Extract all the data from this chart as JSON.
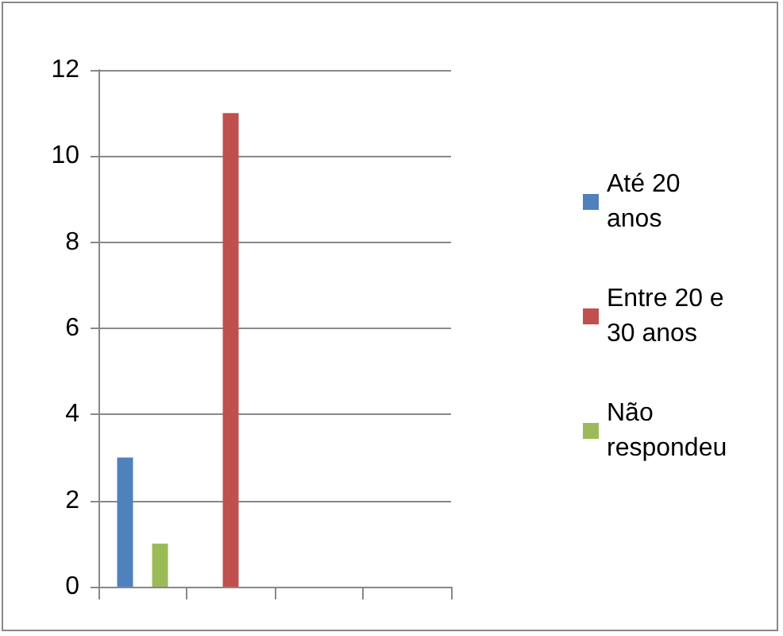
{
  "chart_data": {
    "type": "bar",
    "categories": [
      null,
      null,
      null,
      null
    ],
    "series": [
      {
        "name": "Até 20 anos",
        "color": "#4f81bd",
        "values": [
          3,
          null,
          null,
          null
        ]
      },
      {
        "name": "Entre 20 e 30 anos",
        "color": "#c0504d",
        "values": [
          null,
          11,
          null,
          null
        ]
      },
      {
        "name": "Não respondeu",
        "color": "#9bbb59",
        "values": [
          1,
          null,
          null,
          null
        ]
      }
    ],
    "ylim": [
      0,
      12
    ],
    "yticks": [
      0,
      2,
      4,
      6,
      8,
      10,
      12
    ],
    "grid": "y",
    "legend": "right"
  }
}
